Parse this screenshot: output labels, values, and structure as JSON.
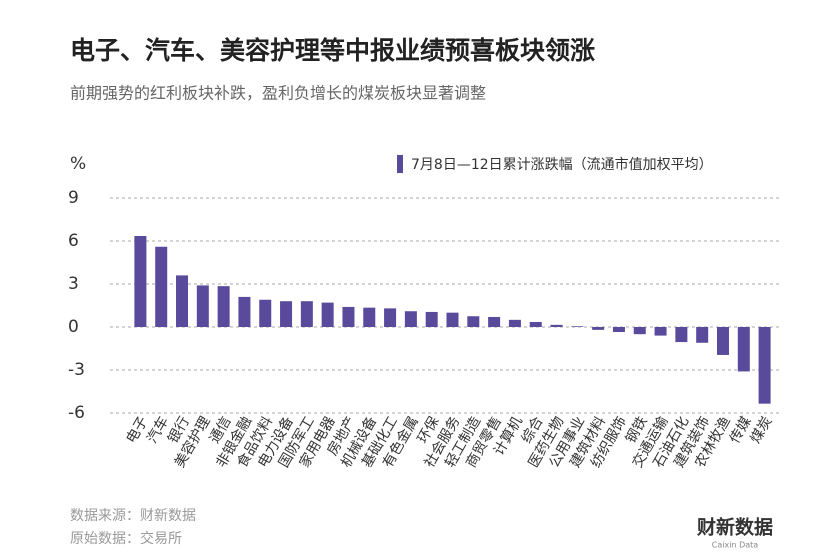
{
  "chart_data": {
    "type": "bar",
    "title": "电子、汽车、美容护理等中报业绩预喜板块领涨",
    "subtitle": "前期强势的红利板块补跌，盈利负增长的煤炭板块显著调整",
    "y_label": "%",
    "categories": [
      "电子",
      "汽车",
      "银行",
      "美容护理",
      "通信",
      "非银金融",
      "食品饮料",
      "电力设备",
      "国防军工",
      "家用电器",
      "房地产",
      "机械设备",
      "基础化工",
      "有色金属",
      "环保",
      "社会服务",
      "轻工制造",
      "商贸零售",
      "计算机",
      "综合",
      "医药生物",
      "公用事业",
      "建筑材料",
      "纺织服饰",
      "钢铁",
      "交通运输",
      "石油石化",
      "建筑装饰",
      "农林牧渔",
      "传媒",
      "煤炭"
    ],
    "series": [
      {
        "name": "7月8日—12日累计涨跌幅（流通市值加权平均）",
        "color": "#5a4a9c",
        "values": [
          6.35,
          5.6,
          3.6,
          2.9,
          2.85,
          2.1,
          1.9,
          1.8,
          1.8,
          1.7,
          1.4,
          1.35,
          1.3,
          1.1,
          1.05,
          1.0,
          0.75,
          0.7,
          0.5,
          0.35,
          0.15,
          0.05,
          -0.2,
          -0.35,
          -0.5,
          -0.6,
          -1.05,
          -1.1,
          -1.95,
          -3.1,
          -5.35
        ]
      }
    ],
    "ylim": [
      -6,
      9
    ],
    "yticks": [
      9,
      6,
      3,
      0,
      -3,
      -6
    ],
    "grid": true,
    "legend": "top-right",
    "source": "数据来源：财新数据",
    "raw_source": "原始数据：交易所",
    "logo": "财新数据",
    "logo_sub": "Caixin Data"
  }
}
